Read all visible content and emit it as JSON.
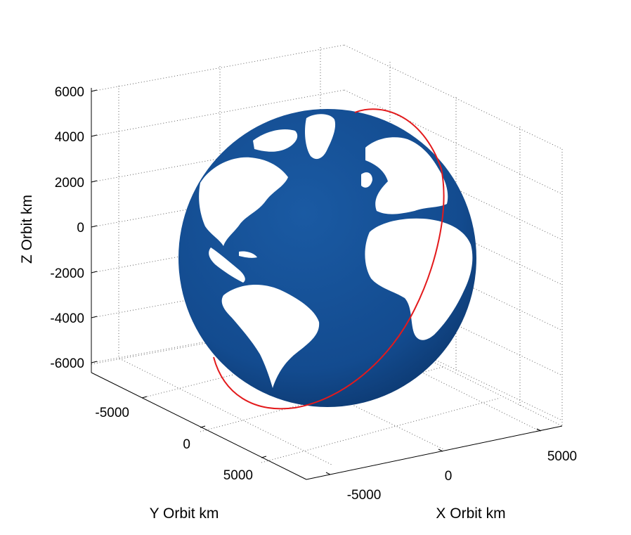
{
  "chart_data": {
    "type": "3d-orbit",
    "xlabel": "X Orbit km",
    "ylabel": "Y Orbit km",
    "zlabel": "Z Orbit km",
    "xticks": [
      "-5000",
      "0",
      "5000"
    ],
    "yticks": [
      "-5000",
      "0",
      "5000"
    ],
    "zticks": [
      "6000",
      "4000",
      "2000",
      "0",
      "-2000",
      "-4000",
      "-6000"
    ],
    "xlim": [
      -7000,
      7000
    ],
    "ylim": [
      -7000,
      7000
    ],
    "zlim": [
      -6500,
      6500
    ],
    "grid": true,
    "earth_radius_km": 6371,
    "orbit": {
      "color": "#e31a1c",
      "radius_km": 6900,
      "inclination_deg": 51.6
    },
    "colors": {
      "ocean": "#134b8f",
      "land": "#ffffff",
      "orbit": "#e31a1c"
    }
  }
}
